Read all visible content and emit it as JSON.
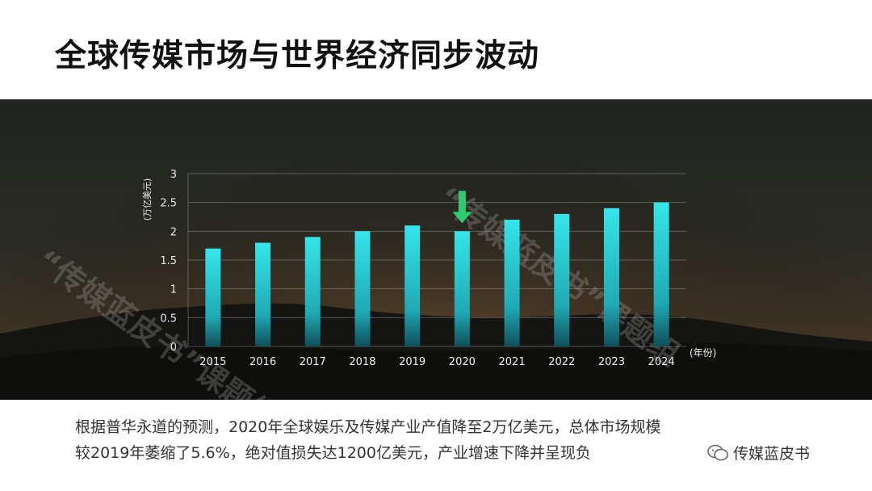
{
  "title": "全球传媒市场与世界经济同步波动",
  "chart_data": {
    "type": "bar",
    "categories": [
      "2015",
      "2016",
      "2017",
      "2018",
      "2019",
      "2020",
      "2021",
      "2022",
      "2023",
      "2024"
    ],
    "values": [
      1.7,
      1.8,
      1.9,
      2.0,
      2.1,
      2.0,
      2.2,
      2.3,
      2.4,
      2.5
    ],
    "yticks": [
      "0",
      "0.5",
      "1",
      "1.5",
      "2",
      "2.5",
      "3"
    ],
    "ylim": [
      0,
      3
    ],
    "ylabel": "(万亿美元)",
    "xlabel": "(年份)",
    "grid": true,
    "highlight_category": "2020",
    "bar_color": "#2ee0e6",
    "arrow_color": "#2ecc71"
  },
  "watermarks": [
    "“传媒蓝皮书”课题组",
    "“传媒蓝皮书”课题组"
  ],
  "caption": {
    "line1": "根据普华永道的预测，2020年全球娱乐及传媒产业产值降至2万亿美元，总体市场规模",
    "line2": "较2019年萎缩了5.6%，绝对值损失达1200亿美元，产业增速下降并呈现负"
  },
  "badge": {
    "icon": "wechat-icon",
    "text": "传媒蓝皮书"
  }
}
